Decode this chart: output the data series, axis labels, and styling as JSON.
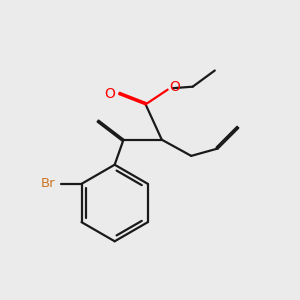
{
  "bg_color": "#ebebeb",
  "bond_color": "#1a1a1a",
  "oxygen_color": "#ff0000",
  "bromine_color": "#cc7722",
  "bond_width": 1.6,
  "dbo": 0.055,
  "figsize": [
    3.0,
    3.0
  ],
  "dpi": 100,
  "xlim": [
    0.0,
    10.0
  ],
  "ylim": [
    0.0,
    10.0
  ]
}
